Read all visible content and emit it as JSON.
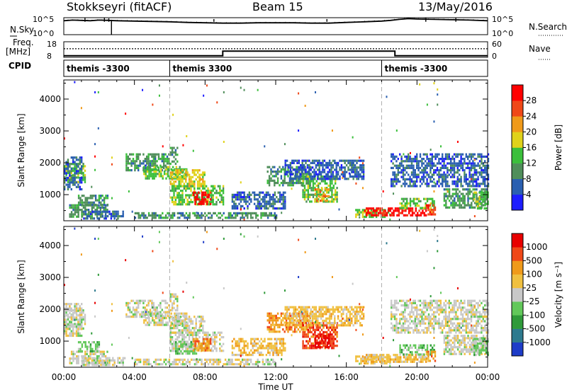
{
  "header": {
    "station": "Stokkseyri (fitACF)",
    "beam": "Beam 15",
    "date": "13/May/2016"
  },
  "panel_labels": {
    "nsky": "N.Sky",
    "nsearch": "N.Search",
    "freq": "Freq.",
    "freq_unit": "[MHz]",
    "nave": "Nave",
    "cpid": "CPID"
  },
  "chart_data": [
    {
      "type": "line",
      "id": "noise",
      "series": [
        {
          "name": "N.Sky",
          "style": "solid"
        },
        {
          "name": "N.Search",
          "style": "dotted"
        }
      ],
      "y_left_ticks": [
        "10^5",
        "10^0"
      ],
      "y_right_ticks": [
        "10^5",
        "10^0"
      ],
      "x_range": [
        0,
        24
      ],
      "y_scale": "log",
      "ylim": [
        1,
        100000
      ],
      "nsky_profile": [
        [
          0.0,
          4.1
        ],
        [
          0.5,
          4.3
        ],
        [
          1.0,
          4.2
        ],
        [
          1.5,
          4.1
        ],
        [
          2.0,
          4.3
        ],
        [
          2.5,
          4.2
        ],
        [
          3.0,
          4.1
        ],
        [
          4.0,
          4.0
        ],
        [
          5.0,
          3.9
        ],
        [
          6.0,
          3.8
        ],
        [
          7.0,
          3.6
        ],
        [
          8.0,
          3.5
        ],
        [
          9.0,
          3.4
        ],
        [
          10.0,
          3.4
        ],
        [
          11.0,
          3.5
        ],
        [
          12.0,
          3.5
        ],
        [
          13.0,
          3.5
        ],
        [
          14.0,
          3.4
        ],
        [
          15.0,
          3.4
        ],
        [
          16.0,
          3.6
        ],
        [
          17.0,
          3.8
        ],
        [
          18.0,
          4.0
        ],
        [
          18.5,
          4.2
        ],
        [
          19.0,
          4.5
        ],
        [
          19.5,
          4.7
        ],
        [
          20.0,
          4.6
        ],
        [
          21.0,
          4.5
        ],
        [
          22.0,
          4.4
        ],
        [
          23.0,
          4.3
        ],
        [
          24.0,
          4.1
        ]
      ],
      "spikes": [
        [
          1.2,
          4.9
        ],
        [
          2.3,
          5.0
        ],
        [
          2.55,
          4.8
        ],
        [
          8.5,
          4.6
        ],
        [
          14.9,
          4.6
        ],
        [
          20.5,
          5.0
        ],
        [
          22.2,
          4.9
        ]
      ],
      "dips": [
        [
          2.7,
          0.0
        ]
      ]
    },
    {
      "type": "line",
      "id": "freq_nave",
      "series": [
        {
          "name": "Freq.",
          "style": "solid",
          "units": "MHz"
        },
        {
          "name": "Nave",
          "style": "dotted"
        }
      ],
      "y_left_ticks": [
        "18",
        "8"
      ],
      "y_right_ticks": [
        "60",
        "0"
      ],
      "ylim_left": [
        8,
        18
      ],
      "ylim_right": [
        0,
        60
      ],
      "x_range": [
        0,
        24
      ],
      "frequency_steps": [
        [
          0,
          9
        ],
        [
          9,
          9
        ],
        [
          9,
          12
        ],
        [
          18.75,
          12
        ],
        [
          18.75,
          9
        ],
        [
          24,
          9
        ]
      ],
      "nave_level": 33
    },
    {
      "type": "table",
      "id": "cpid",
      "entries": [
        {
          "start": 0.0,
          "label": "themis -3300"
        },
        {
          "start": 6.0,
          "label": "themis 3300"
        },
        {
          "start": 18.0,
          "label": "themis -3300"
        }
      ]
    },
    {
      "type": "heatmap",
      "id": "power",
      "ylabel": "Slant Range [km]",
      "ylim": [
        180,
        4600
      ],
      "y_ticks": [
        1000,
        2000,
        3000,
        4000
      ],
      "x_range": [
        0,
        24
      ],
      "colorbar": {
        "label": "Power [dB]",
        "ticks": [
          "4",
          "8",
          "12",
          "16",
          "20",
          "24",
          "28"
        ],
        "colors": [
          "#1d1dff",
          "#2a5fb0",
          "#4f8e5a",
          "#3bbf3b",
          "#e0d21a",
          "#f09a1a",
          "#f04818",
          "#ff0000"
        ]
      },
      "echo_regions": [
        {
          "t": [
            0.0,
            1.2
          ],
          "r": [
            1400,
            2000
          ],
          "level": 3
        },
        {
          "t": [
            0.0,
            1.0
          ],
          "r": [
            1200,
            2200
          ],
          "level": 1
        },
        {
          "t": [
            0.3,
            2.5
          ],
          "r": [
            300,
            700
          ],
          "level": 2
        },
        {
          "t": [
            0.8,
            2.5
          ],
          "r": [
            700,
            1000
          ],
          "level": 2
        },
        {
          "t": [
            1.0,
            3.5
          ],
          "r": [
            250,
            500
          ],
          "level": 1
        },
        {
          "t": [
            3.5,
            6.0
          ],
          "r": [
            1800,
            2300
          ],
          "level": 2
        },
        {
          "t": [
            4.5,
            7.0
          ],
          "r": [
            1500,
            1900
          ],
          "level": 3
        },
        {
          "t": [
            6.0,
            8.0
          ],
          "r": [
            1300,
            1800
          ],
          "level": 4
        },
        {
          "t": [
            6.0,
            9.0
          ],
          "r": [
            700,
            1300
          ],
          "level": 3
        },
        {
          "t": [
            7.3,
            8.3
          ],
          "r": [
            700,
            1100
          ],
          "level": 7
        },
        {
          "t": [
            6.0,
            6.4
          ],
          "r": [
            2000,
            2500
          ],
          "level": 2
        },
        {
          "t": [
            4.0,
            12.0
          ],
          "r": [
            250,
            450
          ],
          "level": 2
        },
        {
          "t": [
            9.5,
            12.5
          ],
          "r": [
            600,
            1100
          ],
          "level": 1
        },
        {
          "t": [
            11.5,
            14.0
          ],
          "r": [
            1300,
            1900
          ],
          "level": 2
        },
        {
          "t": [
            13.5,
            15.5
          ],
          "r": [
            800,
            1600
          ],
          "level": 3
        },
        {
          "t": [
            14.2,
            15.0
          ],
          "r": [
            800,
            1200
          ],
          "level": 5
        },
        {
          "t": [
            12.5,
            17.0
          ],
          "r": [
            1500,
            2100
          ],
          "level": 1
        },
        {
          "t": [
            16.5,
            18.5
          ],
          "r": [
            280,
            550
          ],
          "level": 3
        },
        {
          "t": [
            17.0,
            20.5
          ],
          "r": [
            350,
            600
          ],
          "level": 7
        },
        {
          "t": [
            19.0,
            21.0
          ],
          "r": [
            550,
            900
          ],
          "level": 3
        },
        {
          "t": [
            20.5,
            21.0
          ],
          "r": [
            350,
            700
          ],
          "level": 6
        },
        {
          "t": [
            18.5,
            24.0
          ],
          "r": [
            1300,
            2300
          ],
          "level": 1
        },
        {
          "t": [
            21.5,
            24.0
          ],
          "r": [
            600,
            1200
          ],
          "level": 2
        },
        {
          "t": [
            23.2,
            24.0
          ],
          "r": [
            600,
            1100
          ],
          "level": 3
        }
      ]
    },
    {
      "type": "heatmap",
      "id": "velocity",
      "ylabel": "Slant Range [km]",
      "ylim": [
        180,
        4600
      ],
      "y_ticks": [
        1000,
        2000,
        3000,
        4000
      ],
      "x_range": [
        0,
        24
      ],
      "x_ticks": [
        "00:00",
        "04:00",
        "08:00",
        "12:00",
        "16:00",
        "20:00",
        "00:00"
      ],
      "xlabel": "Time UT",
      "colorbar": {
        "label": "Velocity [m s⁻¹]",
        "ticks": [
          "1000",
          "500",
          "100",
          "25",
          "-25",
          "-100",
          "-500",
          "-1000"
        ],
        "colors": [
          "#1e3cc8",
          "#2e7a8e",
          "#2f9a3a",
          "#62c85a",
          "#c8c8c8",
          "#f0c040",
          "#f09a1a",
          "#f04818",
          "#e80000"
        ]
      },
      "echo_regions": [
        {
          "t": [
            0.0,
            1.2
          ],
          "r": [
            1400,
            2000
          ],
          "level": 4
        },
        {
          "t": [
            0.0,
            1.0
          ],
          "r": [
            1200,
            2200
          ],
          "level": 4
        },
        {
          "t": [
            0.3,
            2.5
          ],
          "r": [
            300,
            700
          ],
          "level": 4
        },
        {
          "t": [
            0.8,
            2.0
          ],
          "r": [
            700,
            1000
          ],
          "level": 3
        },
        {
          "t": [
            1.0,
            3.5
          ],
          "r": [
            250,
            500
          ],
          "level": 4
        },
        {
          "t": [
            3.5,
            6.0
          ],
          "r": [
            1800,
            2300
          ],
          "level": 4
        },
        {
          "t": [
            4.5,
            7.0
          ],
          "r": [
            1500,
            1900
          ],
          "level": 4
        },
        {
          "t": [
            6.0,
            8.0
          ],
          "r": [
            1300,
            1800
          ],
          "level": 4
        },
        {
          "t": [
            6.0,
            9.0
          ],
          "r": [
            700,
            1300
          ],
          "level": 4
        },
        {
          "t": [
            6.3,
            7.5
          ],
          "r": [
            600,
            1000
          ],
          "level": 3
        },
        {
          "t": [
            7.3,
            8.3
          ],
          "r": [
            700,
            1100
          ],
          "level": 6
        },
        {
          "t": [
            6.0,
            6.4
          ],
          "r": [
            2000,
            2500
          ],
          "level": 4
        },
        {
          "t": [
            4.0,
            12.0
          ],
          "r": [
            250,
            450
          ],
          "level": 4
        },
        {
          "t": [
            9.5,
            12.5
          ],
          "r": [
            600,
            1100
          ],
          "level": 5
        },
        {
          "t": [
            11.5,
            14.0
          ],
          "r": [
            1300,
            1900
          ],
          "level": 6
        },
        {
          "t": [
            13.5,
            15.5
          ],
          "r": [
            800,
            1600
          ],
          "level": 7
        },
        {
          "t": [
            14.2,
            15.0
          ],
          "r": [
            800,
            1200
          ],
          "level": 8
        },
        {
          "t": [
            12.5,
            17.0
          ],
          "r": [
            1500,
            2100
          ],
          "level": 5
        },
        {
          "t": [
            16.5,
            18.5
          ],
          "r": [
            280,
            550
          ],
          "level": 5
        },
        {
          "t": [
            17.0,
            20.5
          ],
          "r": [
            350,
            600
          ],
          "level": 5
        },
        {
          "t": [
            19.0,
            21.0
          ],
          "r": [
            550,
            900
          ],
          "level": 3
        },
        {
          "t": [
            20.5,
            21.0
          ],
          "r": [
            350,
            700
          ],
          "level": 6
        },
        {
          "t": [
            18.5,
            24.0
          ],
          "r": [
            1300,
            2300
          ],
          "level": 4
        },
        {
          "t": [
            21.5,
            24.0
          ],
          "r": [
            600,
            1200
          ],
          "level": 4
        },
        {
          "t": [
            23.2,
            24.0
          ],
          "r": [
            600,
            1100
          ],
          "level": 3
        }
      ]
    }
  ]
}
